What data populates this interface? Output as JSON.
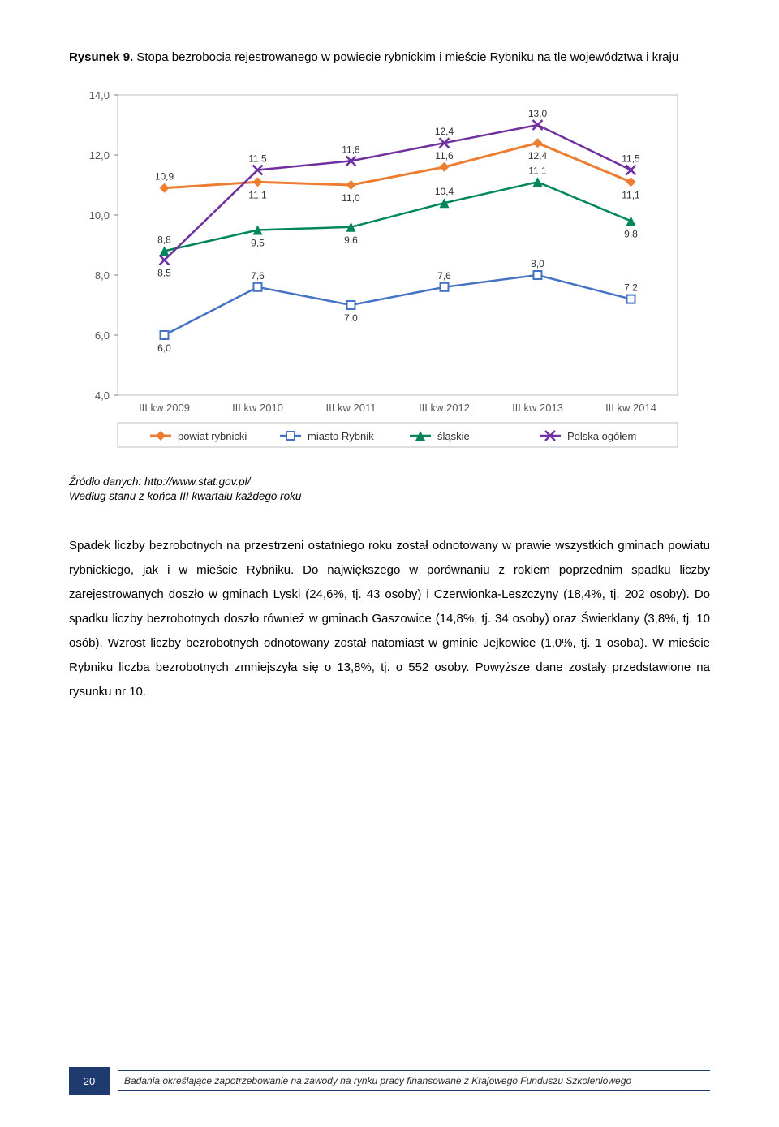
{
  "title": {
    "prefix_bold": "Rysunek 9.",
    "rest": " Stopa bezrobocia rejestrowanego w powiecie rybnickim i mieście Rybniku na tle województwa i kraju"
  },
  "chart": {
    "type": "line",
    "background_color": "#ffffff",
    "plot_bg": "#ffffff",
    "font_family": "Verdana, sans-serif",
    "axis_label_fontsize": 13,
    "data_label_fontsize": 12,
    "data_label_color": "#333333",
    "grid_color": "#bfbfbf",
    "axis_color": "#808080",
    "ylim": [
      4.0,
      14.0
    ],
    "ytick_step": 2.0,
    "ytick_labels": [
      "4,0",
      "6,0",
      "8,0",
      "10,0",
      "12,0",
      "14,0"
    ],
    "categories": [
      "III kw 2009",
      "III kw 2010",
      "III kw 2011",
      "III kw 2012",
      "III kw 2013",
      "III kw 2014"
    ],
    "series": [
      {
        "name": "powiat rybnicki",
        "color": "#ed7d31",
        "marker": "diamond",
        "line_width": 3,
        "values": [
          10.9,
          11.1,
          11.0,
          11.6,
          12.4,
          11.1
        ],
        "labels": [
          "10,9",
          "11,1",
          "11,0",
          "11,6",
          "12,4",
          "11,1"
        ],
        "label_pos": [
          "above",
          "below",
          "below",
          "above",
          "below",
          "below"
        ]
      },
      {
        "name": "miasto Rybnik",
        "color": "#4472c4",
        "marker": "square",
        "line_width": 2.5,
        "values": [
          6.0,
          7.6,
          7.0,
          7.6,
          8.0,
          7.2
        ],
        "labels": [
          "6,0",
          "7,6",
          "7,0",
          "7,6",
          "8,0",
          "7,2"
        ],
        "label_pos": [
          "below",
          "above",
          "below",
          "above",
          "above",
          "above"
        ]
      },
      {
        "name": "śląskie",
        "color": "#00865a",
        "marker": "triangle",
        "line_width": 2.5,
        "values": [
          8.8,
          9.5,
          9.6,
          10.4,
          11.1,
          9.8
        ],
        "labels": [
          "8,8",
          "9,5",
          "9,6",
          "10,4",
          "11,1",
          "9,8"
        ],
        "label_pos": [
          "above",
          "below",
          "below",
          "above",
          "above",
          "below"
        ]
      },
      {
        "name": "Polska ogółem",
        "color": "#7030a0",
        "marker": "x",
        "line_width": 2.5,
        "values": [
          8.5,
          11.5,
          11.8,
          12.4,
          13.0,
          11.5
        ],
        "labels": [
          "8,5",
          "11,5",
          "11,8",
          "12,4",
          "13,0",
          "11,5"
        ],
        "label_pos": [
          "below",
          "above",
          "above",
          "above",
          "above",
          "above"
        ]
      }
    ],
    "legend": {
      "position": "bottom",
      "fontsize": 13,
      "text_color": "#333333"
    }
  },
  "source": {
    "line1": "Źródło danych: http://www.stat.gov.pl/",
    "line2": "Według stanu z końca III kwartału każdego roku"
  },
  "body": "Spadek liczby bezrobotnych na przestrzeni ostatniego roku został odnotowany w prawie wszystkich gminach powiatu rybnickiego, jak i w mieście Rybniku. Do największego w porównaniu z rokiem poprzednim spadku liczby zarejestrowanych doszło w gminach Lyski (24,6%, tj. 43 osoby) i Czerwionka-Leszczyny (18,4%, tj. 202 osoby). Do spadku liczby bezrobotnych doszło również w gminach Gaszowice (14,8%, tj. 34 osoby) oraz Świerklany (3,8%, tj. 10 osób). Wzrost liczby bezrobotnych odnotowany został natomiast w gminie Jejkowice (1,0%, tj. 1 osoba). W mieście Rybniku liczba bezrobotnych zmniejszyła się o 13,8%, tj. o 552 osoby. Powyższe dane zostały przedstawione na rysunku nr 10.",
  "footer": {
    "page_number": "20",
    "text": "Badania określające zapotrzebowanie na zawody na rynku pracy finansowane z Krajowego Funduszu Szkoleniowego"
  }
}
